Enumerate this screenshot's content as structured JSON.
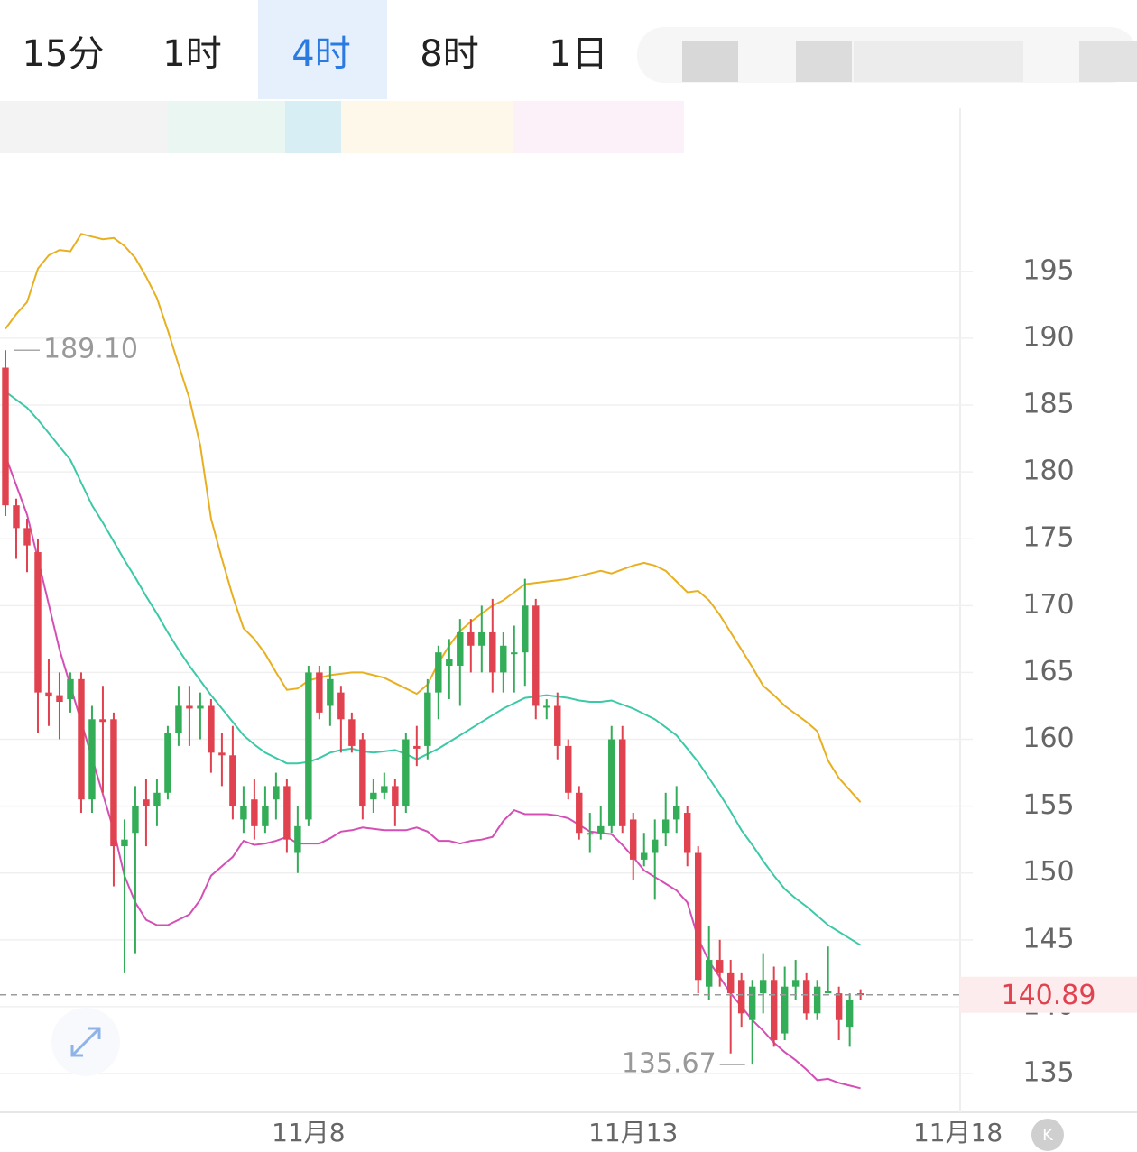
{
  "tabs": [
    "15分",
    "1时",
    "4时",
    "8时",
    "1日"
  ],
  "selected_tab": 2,
  "chart_data": {
    "type": "candlestick",
    "x": [
      0,
      1,
      2,
      3,
      4,
      5,
      6,
      7,
      8,
      9,
      10,
      11,
      12,
      13,
      14,
      15,
      16,
      17,
      18,
      19,
      20,
      21,
      22,
      23,
      24,
      25,
      26,
      27,
      28,
      29,
      30,
      31,
      32,
      33,
      34,
      35,
      36,
      37,
      38,
      39,
      40,
      41,
      42,
      43,
      44,
      45,
      46,
      47,
      48,
      49,
      50,
      51,
      52,
      53,
      54,
      55,
      56,
      57,
      58,
      59,
      60,
      61,
      62,
      63,
      64,
      65,
      66,
      67,
      68,
      69,
      70,
      71,
      72,
      73,
      74,
      75,
      76,
      77,
      78,
      79
    ],
    "open": [
      187.8,
      177.5,
      175.8,
      174,
      163.5,
      163.3,
      163,
      164.5,
      155.5,
      161.5,
      161.5,
      152,
      153,
      155.5,
      155,
      156,
      160.5,
      162.5,
      162.3,
      162.5,
      159,
      158.8,
      154,
      155.5,
      153.5,
      155.5,
      156.5,
      151.5,
      154,
      165,
      162.5,
      163.5,
      161.5,
      160,
      155.5,
      156,
      156.5,
      155,
      159.5,
      159.5,
      163.5,
      165.5,
      165.5,
      168,
      167,
      168,
      165,
      166.5,
      166.5,
      170,
      162.5,
      162.5,
      159.5,
      156,
      153,
      153,
      153.5,
      160,
      154,
      151,
      151.5,
      153,
      154,
      154.5,
      151.5,
      141.5,
      143.5,
      142.5,
      142,
      139,
      141,
      142,
      138,
      141.5,
      142,
      139.5,
      141,
      141,
      138.5,
      141
    ],
    "high": [
      189.1,
      178,
      176.5,
      175,
      166,
      165,
      165,
      165,
      162.5,
      164,
      162,
      154,
      156.5,
      157,
      157,
      161,
      164,
      164,
      163.5,
      163,
      160.5,
      161,
      156.5,
      157,
      156.5,
      157.5,
      157,
      155,
      165.5,
      165.5,
      165.5,
      164,
      162,
      160.5,
      157,
      157.5,
      157,
      160.5,
      161,
      164.5,
      167,
      167.5,
      169,
      169,
      170,
      170.5,
      168,
      168.5,
      172,
      170.5,
      163,
      163.5,
      160,
      156.5,
      154.5,
      155,
      161,
      161,
      154.5,
      153,
      154,
      156,
      156.5,
      155,
      152,
      146,
      145,
      143.5,
      142.5,
      142,
      144,
      143,
      143,
      143.5,
      142.5,
      142,
      144.5,
      141.5,
      141,
      141.3
    ],
    "low": [
      176.7,
      173.5,
      172.5,
      160.5,
      161,
      160,
      162,
      154.5,
      154.5,
      156,
      149,
      142.5,
      144,
      152,
      153.5,
      155.5,
      159.5,
      159.5,
      160,
      157.5,
      156.5,
      154,
      153,
      152.5,
      153,
      154,
      151.5,
      150,
      153.5,
      161.5,
      161,
      159,
      159,
      154,
      154.5,
      155.5,
      153.5,
      154.5,
      158,
      158.5,
      161.5,
      163,
      162.5,
      165,
      165,
      163.5,
      163.5,
      163.5,
      164,
      161.5,
      161.5,
      158.5,
      155.5,
      152.5,
      151.5,
      152.5,
      153,
      153,
      149.5,
      150.5,
      148,
      152,
      153,
      150.5,
      141,
      140.5,
      141.5,
      136.5,
      138.5,
      135.67,
      139.5,
      137,
      137.5,
      140.5,
      139,
      139,
      141,
      137.5,
      137,
      140.5
    ],
    "close": [
      177.5,
      175.8,
      174.5,
      163.5,
      163.2,
      162.8,
      164.5,
      155.5,
      161.5,
      161.3,
      152,
      152.5,
      155,
      155,
      156,
      160.5,
      162.5,
      162.3,
      162.5,
      159,
      158.8,
      155,
      155,
      153.5,
      155,
      156.5,
      152.5,
      153.5,
      165,
      162,
      164.5,
      161.5,
      159.5,
      155,
      156,
      156.5,
      155,
      160,
      159.3,
      163.5,
      166.5,
      166,
      168,
      167,
      168,
      165,
      167,
      166.5,
      170,
      162.5,
      162.5,
      159.5,
      156,
      153,
      153,
      153.5,
      160,
      153.5,
      151,
      151.5,
      152.5,
      154,
      155,
      151.5,
      142,
      143.5,
      142.5,
      141,
      139.5,
      141.5,
      142,
      137.5,
      141.5,
      142,
      139.5,
      141.5,
      141.2,
      139,
      140.5,
      140.89
    ],
    "up_color": "#34ad58",
    "down_color": "#e0434f",
    "bands": [
      {
        "color": "#e8b020",
        "values": [
          190.7,
          191.8,
          192.7,
          195.2,
          196.2,
          196.6,
          196.5,
          197.8,
          197.6,
          197.4,
          197.5,
          196.9,
          196,
          194.6,
          193,
          190.6,
          188,
          185.5,
          182,
          176.5,
          173.5,
          170.7,
          168.3,
          167.5,
          166.4,
          165,
          163.7,
          163.8,
          164.4,
          164.6,
          164.8,
          164.9,
          165,
          165,
          164.8,
          164.6,
          164.2,
          163.8,
          163.4,
          164.1,
          165.7,
          167,
          168.1,
          168.8,
          169.4,
          170,
          170.4,
          171,
          171.6,
          171.7,
          171.8,
          171.9,
          172,
          172.2,
          172.4,
          172.6,
          172.4,
          172.7,
          173,
          173.2,
          173,
          172.6,
          171.8,
          171,
          171.1,
          170.4,
          169.3,
          168,
          166.7,
          165.4,
          164,
          163.3,
          162.5,
          161.9,
          161.3,
          160.6,
          158.4,
          157.1,
          156.2,
          155.3
        ]
      },
      {
        "color": "#3cc9a8",
        "values": [
          186,
          185.4,
          184.8,
          183.9,
          182.9,
          181.9,
          180.9,
          179.2,
          177.5,
          176.2,
          174.8,
          173.4,
          172.1,
          170.7,
          169.4,
          168,
          166.7,
          165.5,
          164.4,
          163.3,
          162.3,
          161.3,
          160.3,
          159.6,
          159,
          158.6,
          158.2,
          158.2,
          158.3,
          158.6,
          159,
          159.2,
          159.3,
          159.1,
          159,
          159.1,
          159.2,
          158.9,
          158.5,
          158.9,
          159.3,
          159.8,
          160.3,
          160.8,
          161.3,
          161.8,
          162.3,
          162.7,
          163.1,
          163.2,
          163.3,
          163.2,
          163.1,
          162.9,
          162.8,
          162.8,
          162.9,
          162.6,
          162.3,
          161.9,
          161.5,
          160.9,
          160.3,
          159.3,
          158.3,
          157.1,
          155.9,
          154.6,
          153.2,
          152.1,
          150.9,
          149.8,
          148.8,
          148.1,
          147.5,
          146.8,
          146.1,
          145.6,
          145.1,
          144.6
        ]
      },
      {
        "color": "#d44fb5",
        "values": [
          181.2,
          179,
          176.8,
          173.5,
          170.1,
          166.7,
          164,
          161.3,
          158.6,
          155.9,
          153.2,
          149.8,
          147.8,
          146.5,
          146.1,
          146.1,
          146.5,
          146.9,
          148,
          149.8,
          150.5,
          151.2,
          152.4,
          152.1,
          152.2,
          152.4,
          152.7,
          152.2,
          152.2,
          152.2,
          152.6,
          153.1,
          153.2,
          153.4,
          153.3,
          153.2,
          153.2,
          153.2,
          153.4,
          153.1,
          152.4,
          152.4,
          152.2,
          152.4,
          152.5,
          152.7,
          153.9,
          154.7,
          154.4,
          154.4,
          154.4,
          154.3,
          154.1,
          153.6,
          153.1,
          153,
          152.9,
          152.1,
          151.2,
          150.2,
          149.7,
          149.2,
          148.7,
          147.8,
          145.1,
          143.4,
          142.2,
          141,
          140,
          139,
          138.2,
          137.3,
          136.6,
          136,
          135.3,
          134.5,
          134.6,
          134.3,
          134.1,
          133.9
        ]
      }
    ],
    "annotations": [
      {
        "value": 189.1,
        "label": "189.10"
      },
      {
        "value": 135.67,
        "label": "135.67"
      }
    ],
    "last_price": {
      "value": 140.89,
      "label": "140.89"
    },
    "xlim": [
      -0.5,
      88.2
    ],
    "ylim": [
      132.1,
      207.2
    ],
    "xticks": [
      {
        "value": 28,
        "label": "11月8"
      },
      {
        "value": 58,
        "label": "11月13"
      },
      {
        "value": 88,
        "label": "11月18"
      }
    ],
    "yticks": [
      135,
      140,
      145,
      150,
      155,
      160,
      165,
      170,
      175,
      180,
      185,
      190,
      195
    ],
    "grid": true
  }
}
